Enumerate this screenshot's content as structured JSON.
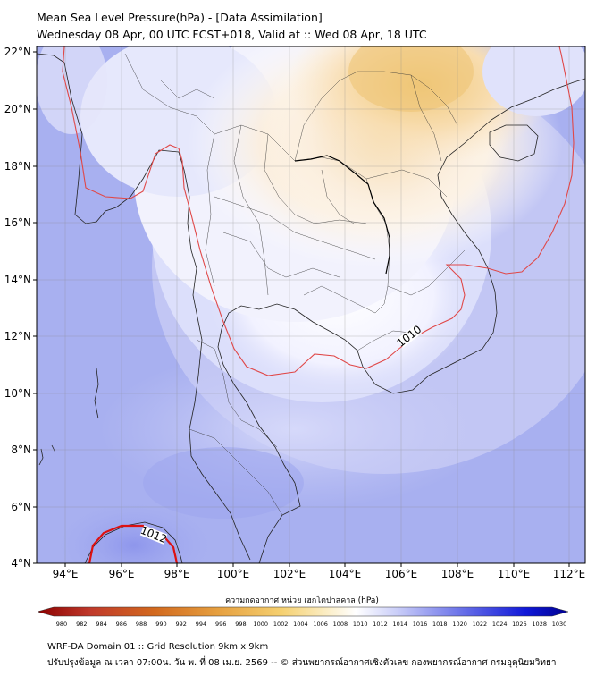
{
  "title": {
    "line1": "Mean Sea Level Pressure(hPa) - [Data Assimilation]",
    "line2": "Wednesday 08 Apr, 00 UTC FCST+018, Valid at :: Wed 08 Apr, 18 UTC"
  },
  "map": {
    "lon_labels": [
      "94°E",
      "96°E",
      "98°E",
      "100°E",
      "102°E",
      "104°E",
      "106°E",
      "108°E",
      "110°E",
      "112°E"
    ],
    "lat_labels": [
      "22°N",
      "20°N",
      "18°N",
      "16°N",
      "14°N",
      "12°N",
      "10°N",
      "8°N",
      "6°N",
      "4°N"
    ],
    "contour_labels": [
      "1010",
      "1012"
    ],
    "colors": {
      "low_pressure_warm": "#f0c878",
      "background_blue": "#a8b0f0",
      "contour_1010": "#e04848",
      "contour_1012": "#dd1111"
    }
  },
  "colorbar": {
    "title": "ความกดอากาศ หน่วย เฮกโตปาสคาล (hPa)",
    "ticks": [
      "980",
      "982",
      "984",
      "986",
      "988",
      "990",
      "992",
      "994",
      "996",
      "998",
      "1000",
      "1002",
      "1004",
      "1006",
      "1008",
      "1010",
      "1012",
      "1014",
      "1016",
      "1018",
      "1020",
      "1022",
      "1024",
      "1026",
      "1028",
      "1030"
    ],
    "color_stops": [
      "#8b0000",
      "#c0392b",
      "#d2691e",
      "#e6a040",
      "#f5d070",
      "#fbecc0",
      "#ffffff",
      "#c8ccf8",
      "#6870e8",
      "#1018d8",
      "#000090"
    ]
  },
  "footer": {
    "line1": "WRF-DA Domain 01 :: Grid Resolution 9km x 9km",
    "line2": "ปรับปรุงข้อมูล ณ เวลา 07:00น. วัน พ. ที่ 08 เม.ย. 2569 -- © ส่วนพยากรณ์อากาศเชิงตัวเลข กองพยากรณ์อากาศ กรมอุตุนิยมวิทยา"
  }
}
